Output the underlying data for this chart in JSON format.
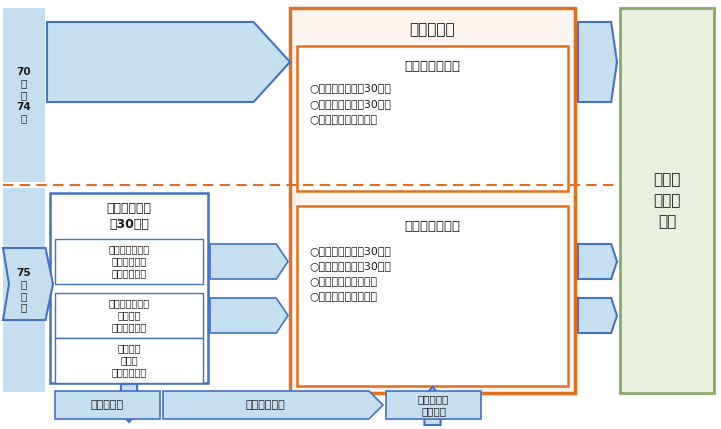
{
  "bg_left_color": "#c5dff0",
  "bg_green_color": "#e8f0e0",
  "orange_border": "#e07020",
  "blue_border": "#4472c4",
  "arrow_fill": "#c5dff0",
  "arrow_edge": "#4472c4",
  "dotted_line_color": "#e07020",
  "text_dark": "#1a1a1a",
  "white": "#ffffff",
  "orange_bg": "#fef5ee",
  "label_70_74": "70\n歳\n〜\n74\n歳",
  "label_75plus": "75\n歳\n以\n上",
  "label_koureisha": "高齢者講習",
  "label_2h": "計２時間の講習",
  "label_2h_content": "○講義（座学）（30分）\n○運転適性検査（30分）\n○実車指導（１時間）",
  "label_3h": "計３時間の講習",
  "label_3h_content": "○講義（座学）（30分）\n○運転適性検査（30分）\n○実車指導（１時間）\n○個別指導（１時間）",
  "label_ninchi": "認知機能検査\n（30分）",
  "label_cat3": "認知機能の低下\nのおそれなし\n（第３分類）",
  "label_cat2": "認知機能の低下\nのおそれ\n（第２分類）",
  "label_cat1": "認知症の\nおそれ\n（第１分類）",
  "label_doctor": "医師の診断",
  "label_ninchisho": "認知症と診断",
  "label_license": "運転免\n許証の\n更新",
  "label_cancel": "運転免許の\n取消し等",
  "fig_w": 7.21,
  "fig_h": 4.29,
  "dpi": 100
}
